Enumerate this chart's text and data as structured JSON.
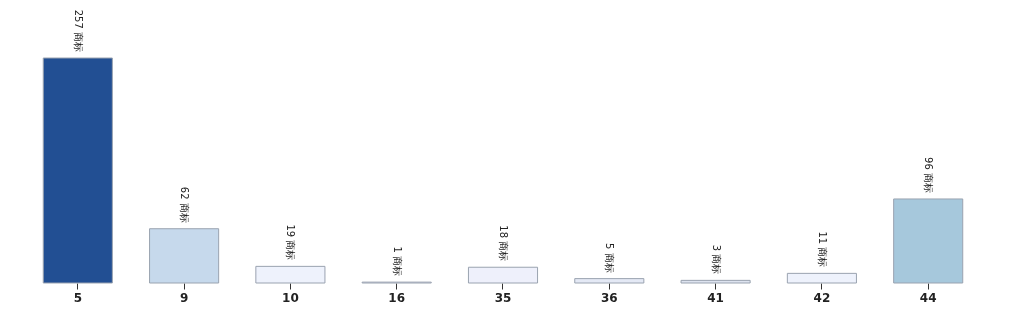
{
  "chart_data": {
    "type": "bar",
    "categories": [
      "5",
      "9",
      "10",
      "16",
      "35",
      "36",
      "41",
      "42",
      "44"
    ],
    "values": [
      257,
      62,
      19,
      1,
      18,
      5,
      3,
      11,
      96
    ],
    "colors": [
      "#224f93",
      "#c6d9ec",
      "#eef2fc",
      "#e8eaf6",
      "#eef0fb",
      "#e4e9f5",
      "#dde3ef",
      "#eef2fc",
      "#a6c8dc"
    ],
    "value_labels": [
      "257 商标",
      "62 商标",
      "19 商标",
      "1 商标",
      "18 商标",
      "5 商标",
      "3 商标",
      "11 商标",
      "96 商标"
    ],
    "grid": false
  }
}
